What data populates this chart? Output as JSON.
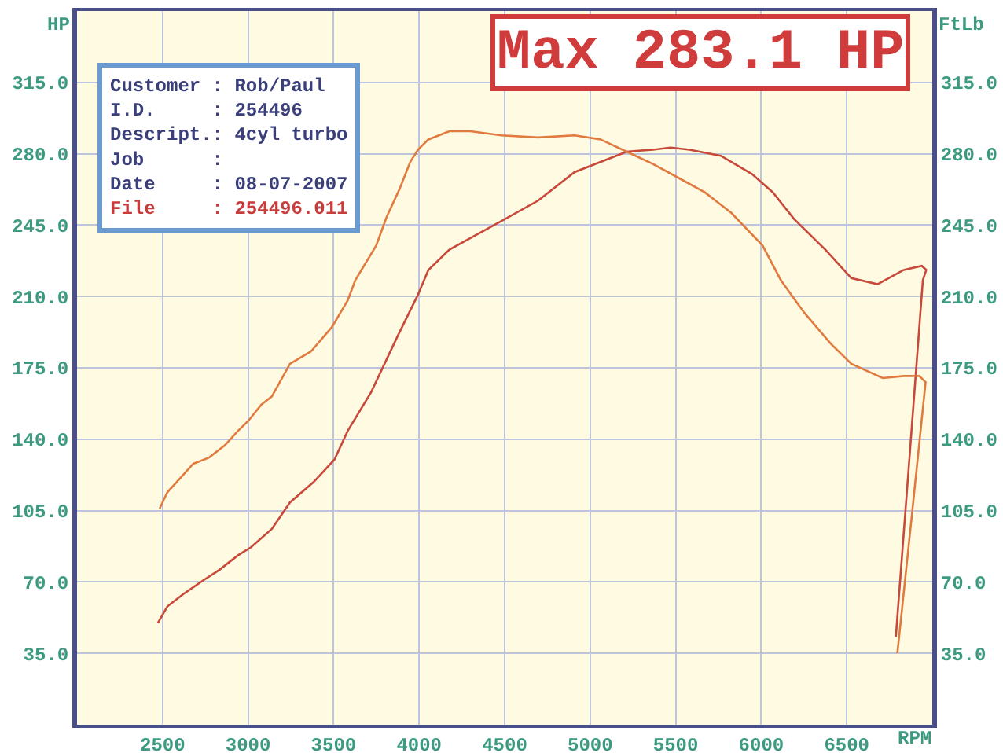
{
  "chart_data": {
    "type": "line",
    "xlabel": "RPM",
    "ylabel": "HP",
    "y2label": "FtLb",
    "annotations": [
      "Max 283.1 HP",
      "Customer : Rob/Paul",
      "I.D. : 254496",
      "Descript.: 4cyl turbo",
      "Job :",
      "Date : 08-07-2007",
      "File : 254496.011"
    ],
    "xlim": [
      2000,
      7000
    ],
    "xticks": [
      2500,
      3000,
      3500,
      4000,
      4500,
      5000,
      5500,
      6000,
      6500
    ],
    "ylim": [
      0,
      350
    ],
    "yticks": [
      {
        "value": 35,
        "label": "35.0"
      },
      {
        "value": 70,
        "label": "70.0"
      },
      {
        "value": 105,
        "label": "105.0"
      },
      {
        "value": 140,
        "label": "140.0"
      },
      {
        "value": 175,
        "label": "175.0"
      },
      {
        "value": 210,
        "label": "210.0"
      },
      {
        "value": 245,
        "label": "245.0"
      },
      {
        "value": 280,
        "label": "280.0"
      },
      {
        "value": 315,
        "label": "315.0"
      }
    ],
    "y2lim": [
      0,
      350
    ],
    "y2ticks": [
      {
        "value": 35,
        "label": "35.0"
      },
      {
        "value": 70,
        "label": "70.0"
      },
      {
        "value": 105,
        "label": "105.0"
      },
      {
        "value": 140,
        "label": "140.0"
      },
      {
        "value": 175,
        "label": "175.0"
      },
      {
        "value": 210,
        "label": "210.0"
      },
      {
        "value": 245,
        "label": "245.0"
      },
      {
        "value": 280,
        "label": "280.0"
      },
      {
        "value": 315,
        "label": "315.0"
      }
    ],
    "grid": true,
    "series": [
      {
        "color": "#c8483a",
        "x": [
          2473,
          2528,
          2620,
          2742,
          2833,
          2940,
          3017,
          3139,
          3245,
          3383,
          3505,
          3582,
          3719,
          3871,
          3994,
          4054,
          4177,
          4329,
          4482,
          4695,
          4909,
          5061,
          5214,
          5367,
          5470,
          5581,
          5764,
          5947,
          6069,
          6192,
          6375,
          6527,
          6680,
          6833,
          6939,
          6965,
          6945,
          6866,
          6787
        ],
        "values": [
          50,
          58,
          64,
          71,
          76,
          83,
          87,
          96,
          109,
          119,
          130,
          144,
          163,
          190,
          211,
          223,
          233,
          240,
          247,
          257,
          271,
          276,
          281,
          282,
          283,
          282,
          279,
          270,
          261,
          248,
          233,
          219,
          216,
          223,
          225,
          223,
          218,
          130,
          43
        ]
      },
      {
        "color": "#e07a3e",
        "axis": "y2",
        "x": [
          2483,
          2528,
          2604,
          2680,
          2772,
          2864,
          2940,
          3001,
          3078,
          3139,
          3245,
          3367,
          3490,
          3582,
          3627,
          3749,
          3810,
          3887,
          3948,
          3994,
          4054,
          4177,
          4299,
          4482,
          4695,
          4909,
          5061,
          5214,
          5367,
          5520,
          5672,
          5825,
          6008,
          6115,
          6252,
          6405,
          6527,
          6710,
          6833,
          6924,
          6961,
          6880,
          6796
        ],
        "values": [
          106,
          114,
          121,
          128,
          131,
          137,
          144,
          149,
          157,
          161,
          177,
          183,
          195,
          208,
          218,
          235,
          249,
          263,
          276,
          282,
          287,
          291,
          291,
          289,
          288,
          289,
          287,
          281,
          275,
          268,
          261,
          251,
          235,
          218,
          202,
          187,
          177,
          170,
          171,
          171,
          168,
          102,
          35
        ]
      }
    ]
  }
}
